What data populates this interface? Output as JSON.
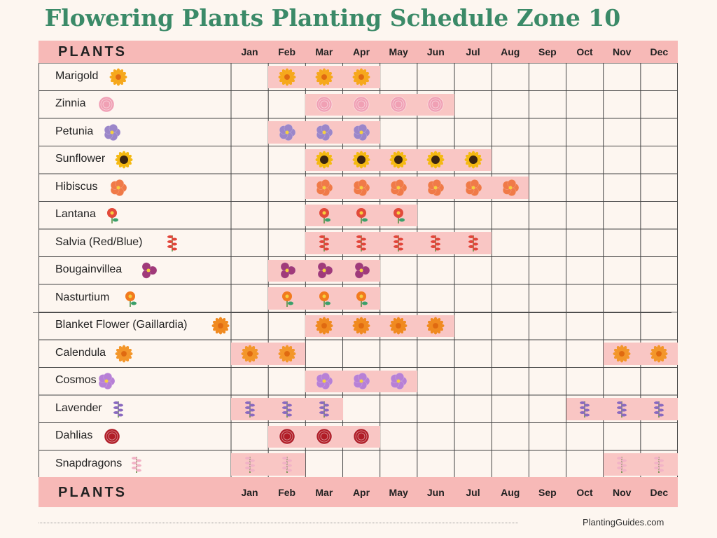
{
  "title": "Flowering Plants Planting Schedule Zone 10",
  "header_label": "PLANTS",
  "months": [
    "Jan",
    "Feb",
    "Mar",
    "Apr",
    "May",
    "Jun",
    "Jul",
    "Aug",
    "Sep",
    "Oct",
    "Nov",
    "Dec"
  ],
  "plants": [
    {
      "name": "Marigold",
      "icon": "marigold-icon",
      "color": "#f6a81c",
      "months": [
        2,
        3,
        4
      ],
      "flowers": 3
    },
    {
      "name": "Zinnia",
      "icon": "zinnia-icon",
      "color": "#f0a0b4",
      "months": [
        3,
        4,
        5,
        6
      ],
      "flowers": 4
    },
    {
      "name": "Petunia",
      "icon": "petunia-icon",
      "color": "#9b86c9",
      "months": [
        2,
        3,
        4
      ],
      "flowers": 3
    },
    {
      "name": "Sunflower",
      "icon": "sunflower-icon",
      "color": "#f4b912",
      "months": [
        3,
        4,
        5,
        6,
        7
      ],
      "flowers": 5
    },
    {
      "name": "Hibiscus",
      "icon": "hibiscus-icon",
      "color": "#f07a48",
      "months": [
        3,
        4,
        5,
        6,
        7,
        8
      ],
      "flowers": 6
    },
    {
      "name": "Lantana",
      "icon": "lantana-icon",
      "color": "#e24a3a",
      "months": [
        3,
        4,
        5
      ],
      "flowers": 3
    },
    {
      "name": "Salvia (Red/Blue)",
      "icon": "salvia-icon",
      "color": "#e2453a",
      "months": [
        3,
        4,
        5,
        6,
        7
      ],
      "flowers": 5
    },
    {
      "name": "Bougainvillea",
      "icon": "bougainvillea-icon",
      "color": "#a03a7a",
      "months": [
        2,
        3,
        4
      ],
      "flowers": 3
    },
    {
      "name": "Nasturtium",
      "icon": "nasturtium-icon",
      "color": "#f27a1e",
      "months": [
        2,
        3,
        4
      ],
      "flowers": 3
    },
    {
      "name": "Blanket Flower (Gaillardia)",
      "icon": "blanket-flower-icon",
      "color": "#f08a20",
      "months": [
        3,
        4,
        5,
        6
      ],
      "flowers": 4
    },
    {
      "name": "Calendula",
      "icon": "calendula-icon",
      "color": "#f3962a",
      "months": [
        1,
        2,
        11,
        12
      ],
      "flowers": 4
    },
    {
      "name": "Cosmos",
      "icon": "cosmos-icon",
      "color": "#b780d6",
      "months": [
        3,
        4,
        5
      ],
      "flowers": 3
    },
    {
      "name": "Lavender",
      "icon": "lavender-icon",
      "color": "#8a6ac0",
      "months": [
        1,
        2,
        3,
        10,
        11,
        12
      ],
      "flowers": 6
    },
    {
      "name": "Dahlias",
      "icon": "dahlia-icon",
      "color": "#b01c26",
      "months": [
        2,
        3,
        4
      ],
      "flowers": 3
    },
    {
      "name": "Snapdragons",
      "icon": "snapdragon-icon",
      "color": "#f2b3c6",
      "months": [
        1,
        2,
        11,
        12
      ],
      "flowers": 4
    }
  ],
  "footer": "PlantingGuides.com"
}
